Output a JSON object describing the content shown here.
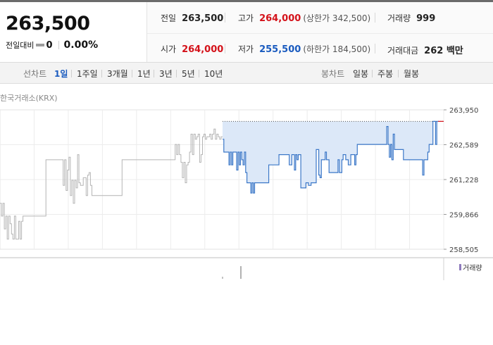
{
  "quote": {
    "price": "263,500",
    "change_label": "전일대비",
    "change_value": "0",
    "change_pct": "0.00%"
  },
  "stats": {
    "prev_label": "전일",
    "prev_value": "263,500",
    "high_label": "고가",
    "high_value": "264,000",
    "upper_limit": "(상한가 342,500)",
    "volume_label": "거래량",
    "volume_value": "999",
    "open_label": "시가",
    "open_value": "264,000",
    "low_label": "저가",
    "low_value": "255,500",
    "lower_limit": "(하한가 184,500)",
    "amount_label": "거래대금",
    "amount_value": "262 백만"
  },
  "tabs": {
    "line_header": "선차트",
    "periods": [
      "1일",
      "1주일",
      "3개월",
      "1년",
      "3년",
      "5년",
      "10년"
    ],
    "selected": "1일",
    "candle_header": "봉차트",
    "candles": [
      "일봉",
      "주봉",
      "월봉"
    ]
  },
  "chart_source": "한국거래소(KRX)",
  "volume_legend": "거래량",
  "colors": {
    "up": "#d4121a",
    "down": "#1a5bbf",
    "today_line": "#3c78c8",
    "today_fill": "#dce8f8",
    "prev_line": "#b4b4b4",
    "volume": "#8e7bbd"
  },
  "chart_data": {
    "type": "line",
    "yticks": [
      "263,950",
      "262,589",
      "261,228",
      "259,866",
      "258,505"
    ],
    "ylim": [
      258505,
      263950
    ],
    "reference_price": 263500,
    "previous_day": {
      "y": [
        260300,
        259800,
        260300,
        259300,
        259800,
        258900,
        259800,
        259500,
        259100,
        258900,
        259800,
        258900,
        258900,
        259600,
        258900,
        259600,
        259800,
        259800,
        259800,
        259800,
        259800,
        259800,
        259800,
        259800,
        259800,
        259800,
        259800,
        259800,
        259800,
        259800,
        259800,
        259800,
        262000,
        262000,
        262000,
        262000,
        262000,
        262000,
        262000,
        262000,
        262000,
        262000,
        262000,
        262000,
        261000,
        262000,
        260800,
        261600,
        262100,
        260600,
        261200,
        260300,
        261200,
        260900,
        262200,
        261100,
        261000,
        261000,
        261300,
        261300,
        260600,
        261400,
        261500,
        261000,
        260600,
        260600,
        260600,
        260600,
        260600,
        260600,
        260600,
        260600,
        260600,
        260600,
        260600,
        260600,
        260600,
        260600,
        260600,
        260600,
        260600,
        260600,
        260600,
        260600,
        260600,
        262000,
        262000,
        262000,
        262000,
        262000,
        262000,
        262000,
        262000,
        262000,
        262000,
        262000,
        262000,
        262000,
        262000,
        262000,
        262000,
        262000,
        262000,
        262000,
        262000,
        262000,
        262000,
        262000,
        262000,
        262000,
        262000,
        262000,
        262000,
        262000,
        262000,
        262000,
        262000,
        262000,
        262000,
        262000,
        262000,
        262000,
        262600,
        262200,
        262600,
        262200,
        261900,
        261300,
        261900,
        261100,
        261800,
        261900,
        262300,
        263000,
        262200,
        263000,
        262800,
        262900,
        263000,
        261900,
        262200,
        262900,
        263000,
        262800,
        262900,
        262900,
        263000,
        262800,
        263000,
        263200,
        262800,
        263000,
        262900,
        262800,
        262900
      ]
    },
    "today": {
      "y": [
        262800,
        262300,
        262300,
        262300,
        262300,
        261800,
        262300,
        261800,
        262300,
        262300,
        262300,
        261600,
        262300,
        261800,
        262300,
        262000,
        261800,
        262300,
        261500,
        261100,
        261100,
        261100,
        260700,
        261100,
        260700,
        261100,
        261100,
        261100,
        261100,
        261100,
        261100,
        261100,
        261100,
        261100,
        261100,
        261100,
        261800,
        261800,
        261800,
        261800,
        261800,
        261800,
        261800,
        261800,
        262200,
        262200,
        262200,
        262200,
        262200,
        262200,
        262200,
        262200,
        261800,
        261800,
        262200,
        262200,
        261600,
        262200,
        262000,
        262200,
        262200,
        260900,
        260900,
        260900,
        260900,
        261100,
        261100,
        261000,
        261000,
        261100,
        261100,
        261100,
        261100,
        262400,
        262400,
        261400,
        261300,
        262000,
        262000,
        262000,
        262300,
        262000,
        262000,
        261500,
        261500,
        261500,
        261500,
        261500,
        261500,
        261500,
        262000,
        261500,
        261500,
        262000,
        262200,
        262200,
        262000,
        262000,
        261800,
        261800,
        262200,
        262200,
        262200,
        261800,
        262200,
        262600,
        262600,
        262600,
        262600,
        262600,
        262600,
        262600,
        262600,
        262600,
        262600,
        262600,
        262600,
        262600,
        262600,
        262600,
        262600,
        262600,
        262600,
        262600,
        262600,
        262600,
        262600,
        262600,
        263300,
        262600,
        262100,
        262600,
        262000,
        263000,
        262400,
        262400,
        262400,
        262400,
        262400,
        262400,
        262400,
        262000,
        262000,
        262000,
        262000,
        262000,
        262000,
        262000,
        262000,
        262000,
        262000,
        262000,
        262000,
        262000,
        262000,
        262000,
        261400,
        262000,
        262000,
        262000,
        262300,
        262600,
        262600,
        262600,
        263500,
        263500,
        262600,
        263500
      ]
    }
  }
}
